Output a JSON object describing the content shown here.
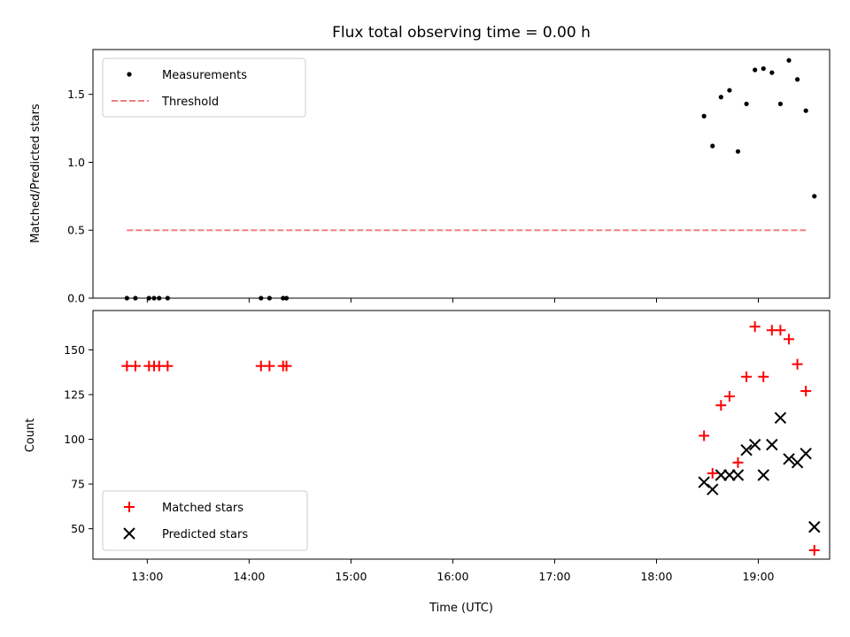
{
  "chart_data": [
    {
      "type": "scatter",
      "title": "Flux total observing time = 0.00 h",
      "xlabel": "",
      "ylabel": "Matched/Predicted stars",
      "xlim": [
        "12:28",
        "19:42"
      ],
      "ylim": [
        0,
        1.83
      ],
      "y_ticks": [
        0,
        0.5,
        1,
        1.5
      ],
      "y_tick_labels": [
        "0.0",
        "0.5",
        "1.0",
        "1.5"
      ],
      "legend_location": "upper left",
      "series": [
        {
          "name": "Measurements",
          "marker": "dot",
          "color": "#000000",
          "x": [
            "12:48",
            "12:53",
            "13:01",
            "13:04",
            "13:07",
            "13:12",
            "14:07",
            "14:12",
            "14:20",
            "14:22",
            "18:28",
            "18:33",
            "18:38",
            "18:43",
            "18:48",
            "18:53",
            "18:58",
            "19:03",
            "19:08",
            "19:13",
            "19:18",
            "19:23",
            "19:28"
          ],
          "y": [
            0,
            0,
            0,
            0,
            0,
            0,
            0,
            0,
            0,
            0,
            1.34,
            1.12,
            1.48,
            1.53,
            1.08,
            1.43,
            1.68,
            1.69,
            1.66,
            1.43,
            1.75,
            1.61,
            1.38
          ]
        },
        {
          "name": "Threshold",
          "style": "dashed",
          "color": "#f08080",
          "x": [
            "12:48",
            "19:28"
          ],
          "y": [
            0.5,
            0.5
          ]
        }
      ],
      "extra_points": [
        {
          "x": "19:33",
          "y": 0.75
        }
      ]
    },
    {
      "type": "scatter",
      "xlabel": "Time (UTC)",
      "ylabel": "Count",
      "xlim": [
        "12:28",
        "19:42"
      ],
      "ylim": [
        33,
        172
      ],
      "x_ticks": [
        "13:00",
        "14:00",
        "15:00",
        "16:00",
        "17:00",
        "18:00",
        "19:00"
      ],
      "y_ticks": [
        50,
        75,
        100,
        125,
        150
      ],
      "legend_location": "lower left",
      "series": [
        {
          "name": "Matched stars",
          "marker": "plus",
          "color": "#ff0000",
          "x": [
            "12:48",
            "12:53",
            "13:01",
            "13:04",
            "13:07",
            "13:12",
            "14:07",
            "14:12",
            "14:20",
            "14:22",
            "18:28",
            "18:33",
            "18:38",
            "18:43",
            "18:48",
            "18:53",
            "18:58",
            "19:03",
            "19:08",
            "19:13",
            "19:18",
            "19:23",
            "19:28",
            "19:33"
          ],
          "y": [
            141,
            141,
            141,
            141,
            141,
            141,
            141,
            141,
            141,
            141,
            102,
            81,
            119,
            124,
            87,
            135,
            163,
            135,
            161,
            161,
            156,
            142,
            127,
            38
          ]
        },
        {
          "name": "Predicted stars",
          "marker": "x",
          "color": "#000000",
          "x": [
            "18:28",
            "18:33",
            "18:38",
            "18:43",
            "18:48",
            "18:53",
            "18:58",
            "19:03",
            "19:08",
            "19:13",
            "19:18",
            "19:23",
            "19:28",
            "19:33"
          ],
          "y": [
            76,
            72,
            80,
            80,
            80,
            94,
            97,
            80,
            97,
            112,
            89,
            87,
            92,
            51
          ]
        }
      ]
    }
  ]
}
